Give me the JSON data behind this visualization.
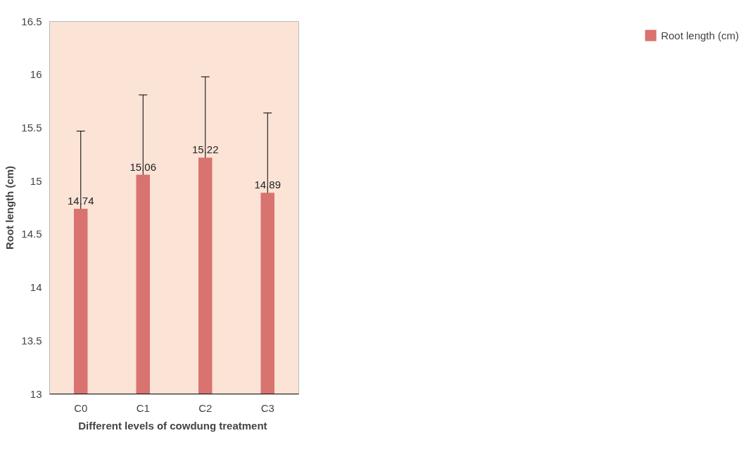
{
  "chart_data": {
    "type": "bar",
    "xlabel": "Different levels of cowdung  treatment",
    "ylabel": "Root length (cm)",
    "categories": [
      "C0",
      "C1",
      "C2",
      "C3"
    ],
    "series": [
      {
        "name": "Root length (cm)",
        "color": "#d9736f",
        "values": [
          14.74,
          15.06,
          15.22,
          14.89
        ],
        "errors": [
          0.73,
          0.75,
          0.76,
          0.75
        ]
      }
    ],
    "ylim": [
      13,
      16.5
    ],
    "yticks": [
      13,
      {
        "value": 13.5,
        "label": "13.5"
      },
      14,
      {
        "value": 14.5,
        "label": "14.5"
      },
      15,
      {
        "value": 15.5,
        "label": "15.5"
      },
      16,
      {
        "value": 16.5,
        "label": "16.5"
      }
    ],
    "data_labels": true,
    "grid": false,
    "legend": "right"
  }
}
